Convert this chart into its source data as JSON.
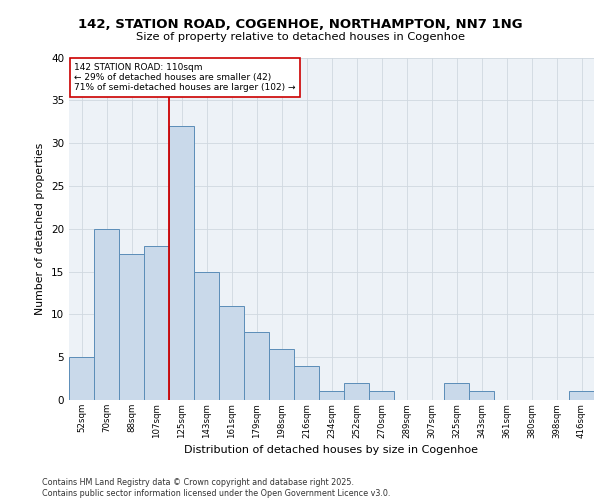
{
  "title_line1": "142, STATION ROAD, COGENHOE, NORTHAMPTON, NN7 1NG",
  "title_line2": "Size of property relative to detached houses in Cogenhoe",
  "xlabel": "Distribution of detached houses by size in Cogenhoe",
  "ylabel": "Number of detached properties",
  "categories": [
    "52sqm",
    "70sqm",
    "88sqm",
    "107sqm",
    "125sqm",
    "143sqm",
    "161sqm",
    "179sqm",
    "198sqm",
    "216sqm",
    "234sqm",
    "252sqm",
    "270sqm",
    "289sqm",
    "307sqm",
    "325sqm",
    "343sqm",
    "361sqm",
    "380sqm",
    "398sqm",
    "416sqm"
  ],
  "values": [
    5,
    20,
    17,
    18,
    32,
    15,
    11,
    8,
    6,
    4,
    1,
    2,
    1,
    0,
    0,
    2,
    1,
    0,
    0,
    0,
    1
  ],
  "bar_color": "#c9d9ea",
  "bar_edge_color": "#5b8db8",
  "grid_color": "#d0d8e0",
  "bg_color": "#edf2f7",
  "annotation_text": "142 STATION ROAD: 110sqm\n← 29% of detached houses are smaller (42)\n71% of semi-detached houses are larger (102) →",
  "annotation_box_color": "#ffffff",
  "annotation_box_edge": "#cc0000",
  "vline_color": "#cc0000",
  "vline_x": 3.5,
  "ylim": [
    0,
    40
  ],
  "yticks": [
    0,
    5,
    10,
    15,
    20,
    25,
    30,
    35,
    40
  ],
  "footer_line1": "Contains HM Land Registry data © Crown copyright and database right 2025.",
  "footer_line2": "Contains public sector information licensed under the Open Government Licence v3.0."
}
